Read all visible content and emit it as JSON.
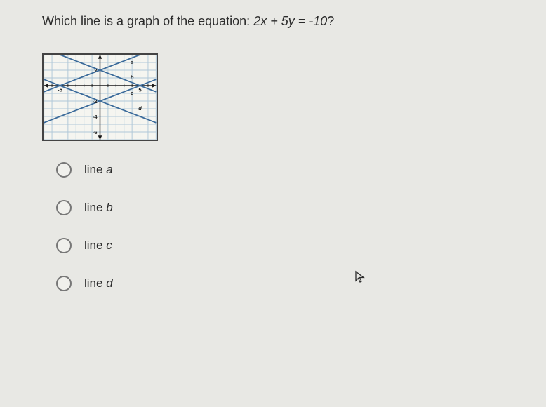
{
  "question": {
    "prefix": "Which line is a graph of the equation: ",
    "equation": "2x + 5y = -10",
    "suffix": "?"
  },
  "graph": {
    "width": 165,
    "height": 125,
    "xlim": [
      -7,
      7
    ],
    "ylim": [
      -7,
      4
    ],
    "xtick_labels": [
      {
        "x": -5,
        "label": "-5"
      },
      {
        "x": 5,
        "label": "5"
      }
    ],
    "ytick_labels": [
      {
        "y": 2,
        "label": "2"
      },
      {
        "y": -2,
        "label": "-2"
      },
      {
        "y": -4,
        "label": "-4"
      },
      {
        "y": -6,
        "label": "-6"
      }
    ],
    "grid_color": "#b0c8d8",
    "grid_width": 1,
    "axis_color": "#1a1a1a",
    "axis_width": 1.5,
    "line_color": "#3a6a9a",
    "line_width": 1.8,
    "label_fontsize": 8,
    "label_color": "#1a1a1a",
    "background_color": "#f5f5f0",
    "lines": [
      {
        "name": "a",
        "x1": -7,
        "y1": -0.8,
        "x2": 7,
        "y2": 4.8,
        "label_x": 4.0,
        "label_y": 3.0
      },
      {
        "name": "b",
        "x1": -7,
        "y1": 4.8,
        "x2": 7,
        "y2": -0.8,
        "label_x": 4.0,
        "label_y": 1.0
      },
      {
        "name": "c",
        "x1": -7,
        "y1": 0.8,
        "x2": 7,
        "y2": -4.8,
        "label_x": 4.0,
        "label_y": -1.0
      },
      {
        "name": "d",
        "x1": -7,
        "y1": -4.8,
        "x2": 7,
        "y2": 0.8,
        "label_x": 5.0,
        "label_y": -3.0
      }
    ]
  },
  "options": [
    {
      "label": "line ",
      "var": "a"
    },
    {
      "label": "line ",
      "var": "b"
    },
    {
      "label": "line ",
      "var": "c"
    },
    {
      "label": "line ",
      "var": "d"
    }
  ],
  "cursor_glyph": "⇖"
}
